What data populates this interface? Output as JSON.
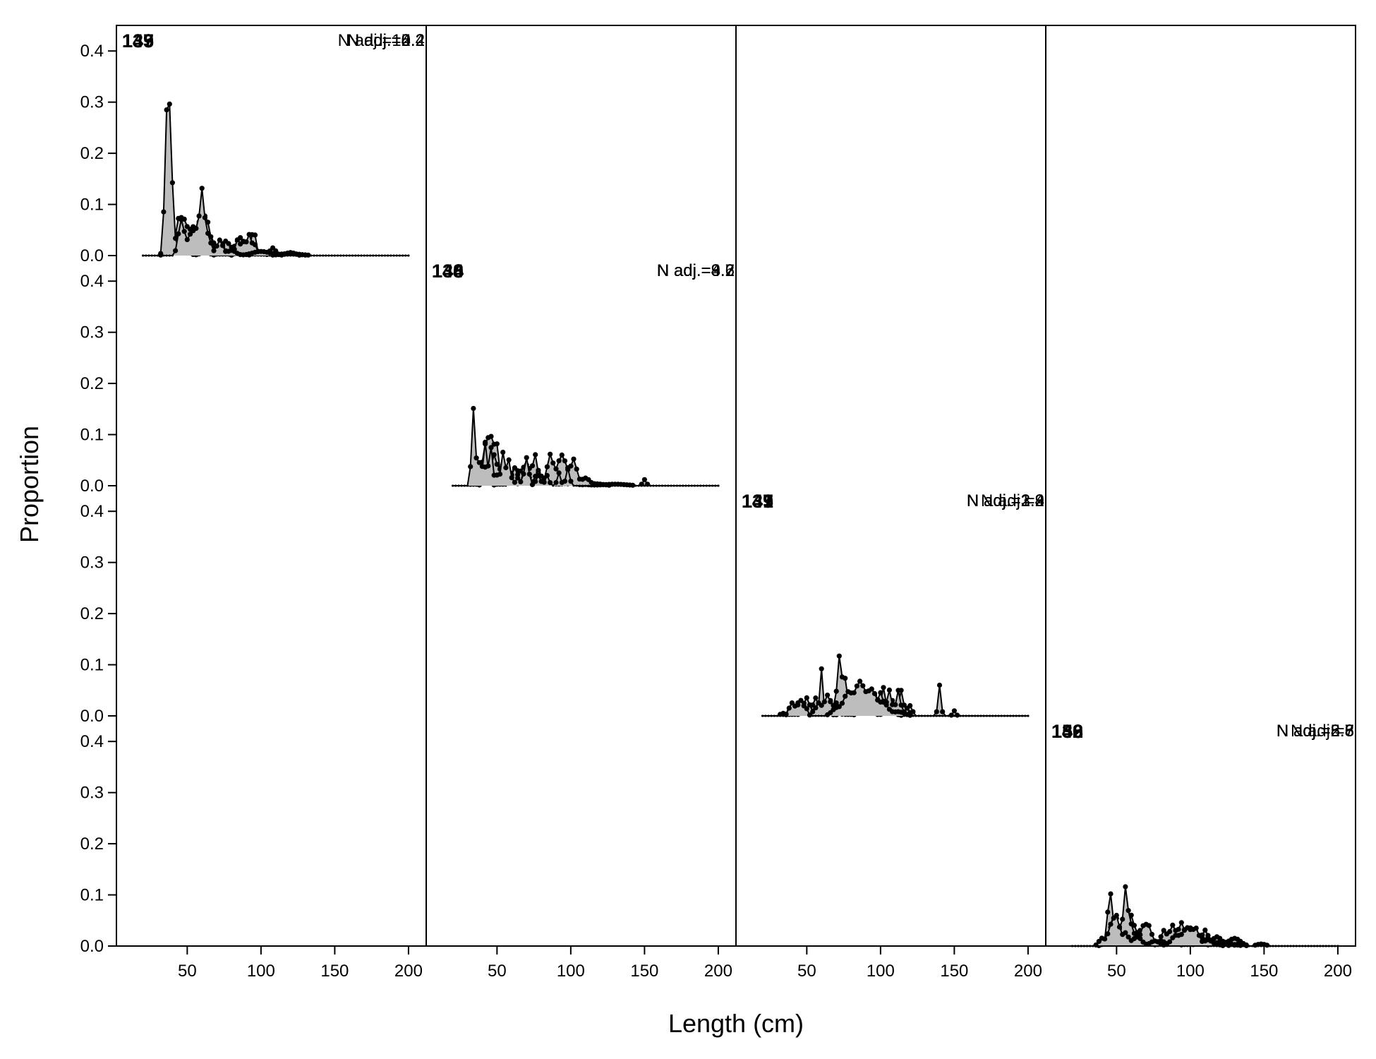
{
  "chart_data": {
    "type": "area",
    "xlabel": "Length (cm)",
    "ylabel": "Proportion",
    "xlim": [
      2,
      212
    ],
    "ylim": [
      0,
      0.45
    ],
    "x_ticks": [
      50,
      100,
      150,
      200
    ],
    "y_ticks": [
      0.0,
      0.1,
      0.2,
      0.3,
      0.4
    ],
    "x_tick_labels": [
      "50",
      "100",
      "150",
      "200"
    ],
    "y_tick_labels": [
      "0.0",
      "0.1",
      "0.2",
      "0.3",
      "0.4"
    ],
    "grid": false,
    "layout_rows": 4,
    "layout_cols": 4,
    "fill_color": "#bdbdbd",
    "line_color": "#000000",
    "x_start": 20,
    "x_step": 2,
    "panels": [
      {
        "id": "135",
        "n_adj": "N adj.=10.2",
        "peaks": [
          [
            40,
            0.035,
            3
          ],
          [
            46,
            0.04,
            2
          ],
          [
            52,
            0.045,
            2
          ],
          [
            58,
            0.04,
            2
          ],
          [
            66,
            0.03,
            3
          ],
          [
            76,
            0.028,
            3
          ],
          [
            86,
            0.035,
            3
          ],
          [
            95,
            0.05,
            1.5
          ],
          [
            108,
            0.015,
            2
          ],
          [
            120,
            0.006,
            3
          ]
        ]
      },
      {
        "id": "139",
        "n_adj": "N adj.=4.4",
        "peaks": [
          [
            44,
            0.065,
            2
          ],
          [
            48,
            0.055,
            2
          ],
          [
            54,
            0.055,
            3
          ],
          [
            60,
            0.07,
            2
          ],
          [
            64,
            0.055,
            2
          ],
          [
            72,
            0.02,
            3
          ],
          [
            84,
            0.004,
            5
          ],
          [
            120,
            0.003,
            8
          ]
        ]
      },
      {
        "id": "143",
        "n_adj": "N adj.=2.2",
        "peaks": [
          [
            36,
            0.235,
            1.4
          ],
          [
            38,
            0.2,
            1.2
          ],
          [
            40,
            0.08,
            1
          ],
          [
            42,
            0.02,
            1.5
          ],
          [
            48,
            0.015,
            3
          ],
          [
            62,
            0.008,
            3
          ],
          [
            84,
            0.03,
            1.5
          ],
          [
            88,
            0.025,
            1.5
          ],
          [
            92,
            0.04,
            1.5
          ],
          [
            96,
            0.02,
            1.5
          ]
        ]
      },
      {
        "id": "147",
        "n_adj": "N adj.=5.2",
        "peaks": [
          [
            46,
            0.07,
            2
          ],
          [
            52,
            0.035,
            2
          ],
          [
            56,
            0.045,
            2
          ],
          [
            60,
            0.12,
            1.5
          ],
          [
            64,
            0.04,
            2
          ],
          [
            72,
            0.03,
            2
          ],
          [
            80,
            0.01,
            3
          ],
          [
            100,
            0.008,
            6
          ],
          [
            120,
            0.004,
            6
          ]
        ]
      },
      {
        "id": "136",
        "n_adj": "N adj.=4.2",
        "peaks": [
          [
            36,
            0.02,
            2
          ],
          [
            42,
            0.07,
            2
          ],
          [
            46,
            0.085,
            2
          ],
          [
            50,
            0.07,
            1.5
          ],
          [
            58,
            0.012,
            3
          ],
          [
            70,
            0.018,
            3
          ],
          [
            80,
            0.018,
            3
          ],
          [
            88,
            0.03,
            2
          ],
          [
            94,
            0.02,
            2
          ],
          [
            102,
            0.008,
            2
          ],
          [
            116,
            0.004,
            6
          ]
        ]
      },
      {
        "id": "140",
        "n_adj": "N adj.=9.2",
        "peaks": [
          [
            42,
            0.02,
            2
          ],
          [
            48,
            0.06,
            2
          ],
          [
            54,
            0.04,
            2
          ],
          [
            62,
            0.03,
            3
          ],
          [
            70,
            0.04,
            3
          ],
          [
            76,
            0.055,
            1.5
          ],
          [
            84,
            0.01,
            3
          ],
          [
            100,
            0.005,
            8
          ],
          [
            130,
            0.003,
            8
          ]
        ]
      },
      {
        "id": "144",
        "n_adj": "N adj.=3.7",
        "peaks": [
          [
            42,
            0.085,
            1.4
          ],
          [
            46,
            0.01,
            1
          ],
          [
            62,
            0.035,
            2
          ],
          [
            70,
            0.025,
            2
          ],
          [
            78,
            0.03,
            2
          ],
          [
            86,
            0.06,
            2
          ],
          [
            94,
            0.06,
            3
          ],
          [
            102,
            0.05,
            2
          ],
          [
            110,
            0.015,
            3
          ],
          [
            150,
            0.012,
            1.2
          ]
        ]
      },
      {
        "id": "148",
        "n_adj": "N adj.=3.6",
        "peaks": [
          [
            34,
            0.15,
            1.2
          ],
          [
            38,
            0.04,
            1.5
          ],
          [
            42,
            0.035,
            2
          ],
          [
            46,
            0.07,
            1.2
          ],
          [
            50,
            0.02,
            1
          ],
          [
            54,
            0.065,
            1.3
          ],
          [
            58,
            0.05,
            1.3
          ],
          [
            64,
            0.015,
            1.5
          ],
          [
            70,
            0.055,
            1.5
          ],
          [
            78,
            0.02,
            1.5
          ],
          [
            84,
            0.02,
            1.3
          ],
          [
            92,
            0.025,
            1.2
          ],
          [
            98,
            0.035,
            1.2
          ]
        ]
      },
      {
        "id": "137",
        "n_adj": "N adj.=2.2",
        "peaks": [
          [
            34,
            0.005,
            2
          ],
          [
            48,
            0.02,
            2
          ],
          [
            56,
            0.035,
            2
          ],
          [
            64,
            0.015,
            2
          ],
          [
            74,
            0.015,
            2
          ],
          [
            80,
            0.025,
            2
          ],
          [
            88,
            0.035,
            2
          ],
          [
            96,
            0.04,
            2
          ],
          [
            102,
            0.055,
            1.5
          ],
          [
            108,
            0.03,
            1.5
          ],
          [
            114,
            0.05,
            1.5
          ],
          [
            120,
            0.02,
            1.5
          ],
          [
            140,
            0.06,
            1
          ],
          [
            150,
            0.01,
            1
          ]
        ]
      },
      {
        "id": "141",
        "n_adj": "N adj.=3.4",
        "peaks": [
          [
            40,
            0.015,
            2
          ],
          [
            48,
            0.02,
            2
          ],
          [
            56,
            0.015,
            2
          ],
          [
            60,
            0.09,
            1
          ],
          [
            66,
            0.03,
            1.5
          ],
          [
            72,
            0.115,
            1.5
          ],
          [
            76,
            0.07,
            1.5
          ],
          [
            82,
            0.03,
            2
          ],
          [
            92,
            0.012,
            3
          ],
          [
            106,
            0.008,
            4
          ]
        ]
      },
      {
        "id": "145",
        "n_adj": "N adj.=1.9",
        "peaks": [
          [
            44,
            0.025,
            2
          ],
          [
            50,
            0.035,
            2
          ],
          [
            58,
            0.025,
            2
          ],
          [
            64,
            0.04,
            2
          ],
          [
            70,
            0.025,
            2
          ],
          [
            86,
            0.015,
            2
          ],
          [
            94,
            0.035,
            2
          ],
          [
            100,
            0.045,
            2
          ],
          [
            106,
            0.05,
            1.5
          ],
          [
            112,
            0.05,
            1.5
          ],
          [
            118,
            0.015,
            1.5
          ]
        ]
      },
      {
        "id": "149",
        "n_adj": "N adj.=3",
        "peaks": [
          [
            40,
            0.025,
            2
          ],
          [
            46,
            0.03,
            2
          ],
          [
            50,
            0.01,
            1
          ],
          [
            70,
            0.015,
            3
          ],
          [
            78,
            0.045,
            3
          ],
          [
            86,
            0.065,
            3
          ],
          [
            94,
            0.05,
            3
          ],
          [
            102,
            0.025,
            3
          ],
          [
            112,
            0.008,
            4
          ]
        ]
      },
      {
        "id": "138",
        "n_adj": "N adj.=5.8",
        "peaks": [
          [
            46,
            0.03,
            3
          ],
          [
            52,
            0.035,
            2
          ],
          [
            60,
            0.06,
            2
          ],
          [
            66,
            0.03,
            2
          ],
          [
            74,
            0.012,
            2
          ],
          [
            84,
            0.01,
            3
          ],
          [
            92,
            0.02,
            3
          ],
          [
            102,
            0.025,
            3
          ],
          [
            110,
            0.03,
            2
          ],
          [
            118,
            0.018,
            3
          ],
          [
            130,
            0.015,
            4
          ],
          [
            148,
            0.004,
            3
          ]
        ]
      },
      {
        "id": "142",
        "n_adj": "N adj.=2.7",
        "peaks": [
          [
            44,
            0.04,
            1.3
          ],
          [
            46,
            0.085,
            1.3
          ],
          [
            50,
            0.035,
            2
          ],
          [
            56,
            0.02,
            2
          ],
          [
            64,
            0.01,
            2
          ],
          [
            72,
            0.015,
            2
          ],
          [
            82,
            0.03,
            2
          ],
          [
            88,
            0.04,
            2
          ],
          [
            94,
            0.045,
            2
          ],
          [
            100,
            0.035,
            2
          ],
          [
            108,
            0.015,
            2
          ],
          [
            126,
            0.006,
            2
          ],
          [
            134,
            0.006,
            2
          ]
        ]
      },
      {
        "id": "146",
        "n_adj": "N adj.=8",
        "peaks": [
          [
            46,
            0.03,
            2
          ],
          [
            50,
            0.05,
            2
          ],
          [
            56,
            0.11,
            1.5
          ],
          [
            60,
            0.04,
            2
          ],
          [
            68,
            0.035,
            2
          ],
          [
            72,
            0.035,
            2
          ],
          [
            80,
            0.01,
            3
          ],
          [
            90,
            0.005,
            3
          ],
          [
            106,
            0.02,
            2
          ],
          [
            112,
            0.015,
            2
          ],
          [
            120,
            0.008,
            3
          ]
        ]
      },
      {
        "id": "150",
        "n_adj": "N adj.=8.6",
        "peaks": [
          [
            40,
            0.015,
            2
          ],
          [
            46,
            0.035,
            2
          ],
          [
            50,
            0.055,
            2
          ],
          [
            56,
            0.025,
            2
          ],
          [
            64,
            0.018,
            3
          ],
          [
            76,
            0.01,
            3
          ],
          [
            90,
            0.02,
            3
          ],
          [
            98,
            0.035,
            3
          ],
          [
            104,
            0.03,
            2
          ],
          [
            112,
            0.012,
            3
          ],
          [
            126,
            0.004,
            5
          ]
        ]
      }
    ]
  }
}
